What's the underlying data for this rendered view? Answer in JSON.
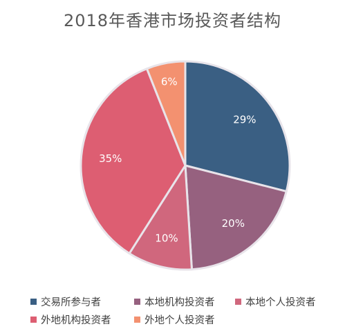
{
  "chart_data": {
    "type": "pie",
    "title": "2018年香港市场投资者结构",
    "categories": [
      "交易所参与者",
      "本地机构投资者",
      "本地个人投资者",
      "外地机构投资者",
      "外地个人投资者"
    ],
    "values": [
      29,
      20,
      10,
      35,
      6
    ],
    "value_labels": [
      "29%",
      "20%",
      "10%",
      "35%",
      "6%"
    ],
    "colors": [
      "#3a5f83",
      "#96617f",
      "#d0677d",
      "#dd5e72",
      "#f39170"
    ],
    "legend_position": "bottom"
  }
}
